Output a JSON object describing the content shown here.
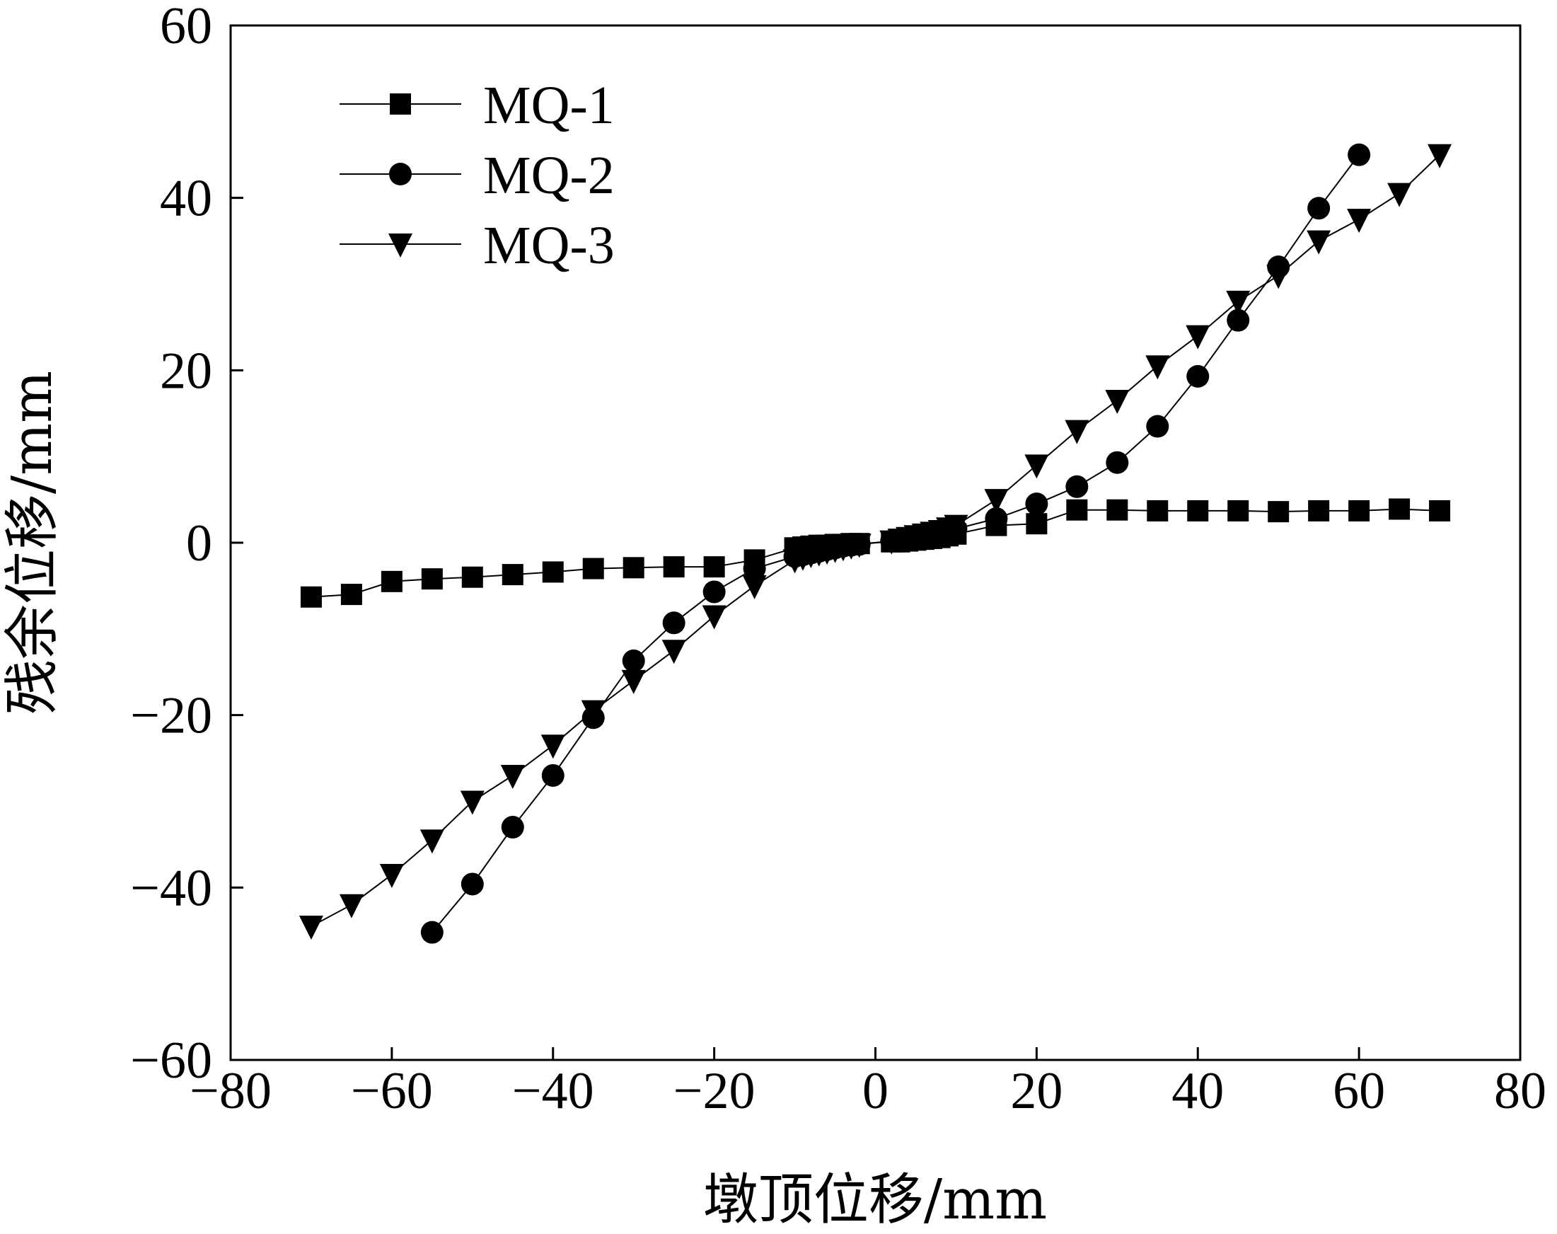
{
  "chart_data": {
    "type": "line",
    "xlabel": "墩顶位移/mm",
    "ylabel": "残余位移/mm",
    "xlim": [
      -80,
      80
    ],
    "ylim": [
      -60,
      60
    ],
    "xticks": [
      -80,
      -60,
      -40,
      -20,
      0,
      20,
      40,
      60,
      80
    ],
    "yticks": [
      -60,
      -40,
      -20,
      0,
      20,
      40,
      60
    ],
    "xtick_labels": [
      "−80",
      "−60",
      "−40",
      "−20",
      "0",
      "20",
      "40",
      "60",
      "80"
    ],
    "ytick_labels": [
      "−60",
      "−40",
      "−20",
      "0",
      "20",
      "40",
      "60"
    ],
    "grid": false,
    "legend_position": "top-left",
    "series": [
      {
        "name": "MQ-1",
        "marker": "square",
        "color": "#000000",
        "x": [
          -70,
          -65,
          -60,
          -55,
          -50,
          -45,
          -40,
          -35,
          -30,
          -25,
          -20,
          -15,
          -10,
          -9,
          -8,
          -7,
          -6,
          -5,
          -4,
          -3,
          -2,
          2,
          3,
          4,
          5,
          6,
          7,
          8,
          9,
          10,
          15,
          20,
          25,
          30,
          35,
          40,
          45,
          50,
          55,
          60,
          65,
          70
        ],
        "y": [
          -6.3,
          -6.0,
          -4.5,
          -4.2,
          -4.0,
          -3.7,
          -3.4,
          -3.0,
          -2.9,
          -2.8,
          -2.8,
          -2.0,
          -0.6,
          -0.5,
          -0.4,
          -0.3,
          -0.3,
          -0.2,
          -0.2,
          -0.1,
          -0.1,
          0.1,
          0.1,
          0.2,
          0.3,
          0.4,
          0.5,
          0.6,
          0.8,
          1.0,
          2.0,
          2.2,
          3.8,
          3.8,
          3.7,
          3.7,
          3.7,
          3.6,
          3.7,
          3.7,
          3.9,
          3.7
        ]
      },
      {
        "name": "MQ-2",
        "marker": "circle",
        "color": "#000000",
        "x": [
          -55,
          -50,
          -45,
          -40,
          -35,
          -30,
          -25,
          -20,
          -15,
          -10,
          -9,
          -8,
          -7,
          -6,
          -5,
          -4,
          -3,
          -2,
          2,
          3,
          4,
          5,
          6,
          7,
          8,
          9,
          10,
          15,
          20,
          25,
          30,
          35,
          40,
          45,
          50,
          55,
          60
        ],
        "y": [
          -45.2,
          -39.6,
          -33.0,
          -27.0,
          -20.3,
          -13.7,
          -9.3,
          -5.7,
          -3.0,
          -1.6,
          -1.4,
          -1.2,
          -1.0,
          -0.8,
          -0.6,
          -0.4,
          -0.3,
          -0.2,
          0.2,
          0.3,
          0.4,
          0.6,
          0.8,
          1.0,
          1.2,
          1.4,
          1.6,
          2.8,
          4.5,
          6.5,
          9.3,
          13.5,
          19.3,
          25.8,
          32.0,
          38.8,
          45.0
        ]
      },
      {
        "name": "MQ-3",
        "marker": "triangle-down",
        "color": "#000000",
        "x": [
          -70,
          -65,
          -60,
          -55,
          -50,
          -45,
          -40,
          -35,
          -30,
          -25,
          -20,
          -15,
          -10,
          -9,
          -8,
          -7,
          -6,
          -5,
          -4,
          -3,
          -2,
          2,
          3,
          4,
          5,
          6,
          7,
          8,
          9,
          10,
          15,
          20,
          25,
          30,
          35,
          40,
          45,
          50,
          55,
          60,
          65,
          70
        ],
        "y": [
          -44.5,
          -42.0,
          -38.5,
          -34.5,
          -30.0,
          -27.0,
          -23.5,
          -19.5,
          -16.0,
          -12.5,
          -8.5,
          -5.0,
          -2.0,
          -1.7,
          -1.4,
          -1.2,
          -1.0,
          -0.8,
          -0.6,
          -0.4,
          -0.2,
          0.2,
          0.4,
          0.6,
          0.8,
          1.0,
          1.2,
          1.4,
          1.7,
          2.0,
          5.0,
          9.0,
          13.0,
          16.5,
          20.5,
          24.0,
          28.0,
          31.0,
          35.0,
          37.5,
          40.5,
          45.0
        ]
      }
    ]
  }
}
